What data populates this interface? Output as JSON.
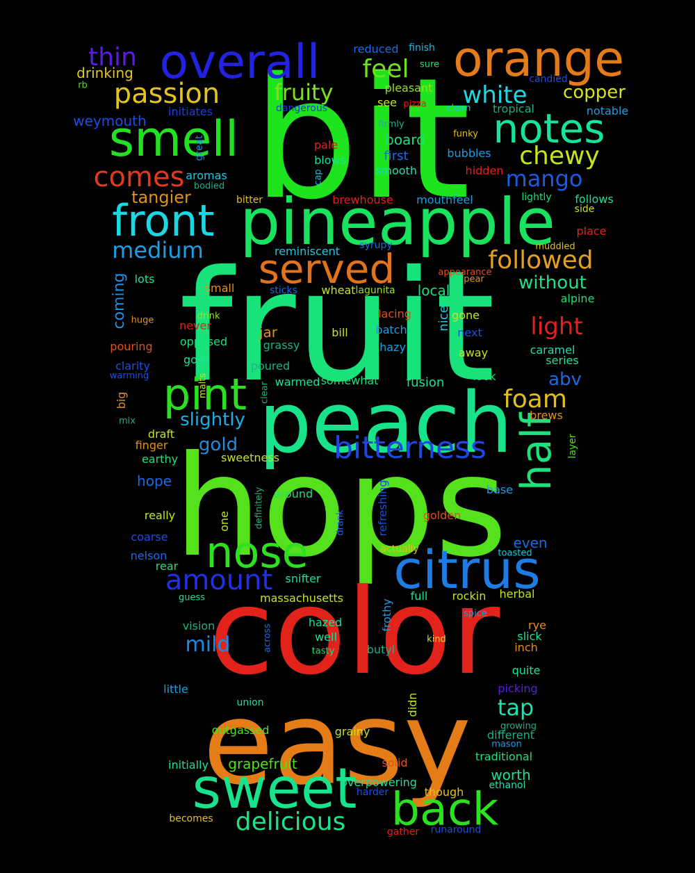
{
  "words": [
    {
      "text": "bit",
      "color": "#1de41d"
    },
    {
      "text": "fruit",
      "color": "#18e27a"
    },
    {
      "text": "hops",
      "color": "#55e21c"
    },
    {
      "text": "color",
      "color": "#e2231b"
    },
    {
      "text": "easy",
      "color": "#e47c18"
    },
    {
      "text": "peach",
      "color": "#18e28a"
    },
    {
      "text": "pineapple",
      "color": "#18e25e"
    },
    {
      "text": "orange",
      "color": "#e47b1b"
    },
    {
      "text": "overall",
      "color": "#2222e0"
    },
    {
      "text": "smell",
      "color": "#22e022"
    },
    {
      "text": "sweet",
      "color": "#18e28c"
    },
    {
      "text": "citrus",
      "color": "#1f7ce2"
    },
    {
      "text": "nose",
      "color": "#2fe020"
    },
    {
      "text": "back",
      "color": "#2ee022"
    },
    {
      "text": "notes",
      "color": "#18e2a0"
    },
    {
      "text": "front",
      "color": "#1ad8e2"
    },
    {
      "text": "served",
      "color": "#e0731c"
    },
    {
      "text": "pint",
      "color": "#2ae020"
    },
    {
      "text": "half",
      "color": "#1fe07a"
    },
    {
      "text": "bitterness",
      "color": "#2046e2"
    },
    {
      "text": "amount",
      "color": "#2230e2"
    },
    {
      "text": "passion",
      "color": "#e2c420"
    },
    {
      "text": "comes",
      "color": "#e23a1c"
    },
    {
      "text": "delicious",
      "color": "#18e28a"
    },
    {
      "text": "followed",
      "color": "#e2a020"
    },
    {
      "text": "chewy",
      "color": "#c8e21c"
    },
    {
      "text": "fruity",
      "color": "#7ce21c"
    },
    {
      "text": "white",
      "color": "#1cd8e0"
    },
    {
      "text": "feel",
      "color": "#6ee21c"
    },
    {
      "text": "thin",
      "color": "#5a1ce2"
    },
    {
      "text": "foam",
      "color": "#e2c01c"
    },
    {
      "text": "light",
      "color": "#e22020"
    },
    {
      "text": "medium",
      "color": "#1c9ee2"
    },
    {
      "text": "mango",
      "color": "#1c5ae2"
    },
    {
      "text": "tap",
      "color": "#1ce0b0"
    },
    {
      "text": "mild",
      "color": "#1c8ae2"
    },
    {
      "text": "copper",
      "color": "#d8e21c"
    },
    {
      "text": "without",
      "color": "#1ce08a"
    },
    {
      "text": "slightly",
      "color": "#1caee2"
    },
    {
      "text": "gold",
      "color": "#1c8ee2"
    },
    {
      "text": "abv",
      "color": "#1c6ae2"
    },
    {
      "text": "tangier",
      "color": "#e2901c"
    },
    {
      "text": "weymouth",
      "color": "#1c4ee2"
    },
    {
      "text": "drinking",
      "color": "#e2c81c"
    },
    {
      "text": "coming",
      "color": "#1c92e2"
    },
    {
      "text": "grapefruit",
      "color": "#4ee21c"
    },
    {
      "text": "worth",
      "color": "#1ce09a"
    },
    {
      "text": "reduced",
      "color": "#1c6ae2"
    },
    {
      "text": "finish",
      "color": "#1cb8e0"
    },
    {
      "text": "sure",
      "color": "#1ce07a"
    },
    {
      "text": "pleasant",
      "color": "#96e21c"
    },
    {
      "text": "see",
      "color": "#c8e21c"
    },
    {
      "text": "pizza",
      "color": "#e2201c"
    },
    {
      "text": "clean",
      "color": "#1cc8e0"
    },
    {
      "text": "tropical",
      "color": "#1cb088"
    },
    {
      "text": "notable",
      "color": "#1c9ee2"
    },
    {
      "text": "candied",
      "color": "#1c4ee2"
    },
    {
      "text": "rb",
      "color": "#4ee21c"
    },
    {
      "text": "initiates",
      "color": "#1c3ee2"
    },
    {
      "text": "dangerous",
      "color": "#1c3ee2"
    },
    {
      "text": "great",
      "color": "#1c8ee2"
    },
    {
      "text": "firmly",
      "color": "#1cb088"
    },
    {
      "text": "funky",
      "color": "#e2c01c"
    },
    {
      "text": "board",
      "color": "#1ce07a"
    },
    {
      "text": "pale",
      "color": "#e22020"
    },
    {
      "text": "first",
      "color": "#1c6ae2"
    },
    {
      "text": "bubbles",
      "color": "#1c9ee2"
    },
    {
      "text": "blows",
      "color": "#1ce09a"
    },
    {
      "text": "cap",
      "color": "#1cb8e0"
    },
    {
      "text": "aromas",
      "color": "#1cc8e0"
    },
    {
      "text": "bodied",
      "color": "#1cb088"
    },
    {
      "text": "smooth",
      "color": "#1ce0b0"
    },
    {
      "text": "hidden",
      "color": "#e2201c"
    },
    {
      "text": "bitter",
      "color": "#e2c01c"
    },
    {
      "text": "brewhouse",
      "color": "#e2201c"
    },
    {
      "text": "mouthfeel",
      "color": "#1c9ee2"
    },
    {
      "text": "lightly",
      "color": "#1ce07a"
    },
    {
      "text": "follows",
      "color": "#1ce09a"
    },
    {
      "text": "side",
      "color": "#c8e21c"
    },
    {
      "text": "place",
      "color": "#e2201c"
    },
    {
      "text": "reminiscent",
      "color": "#1cc8e0"
    },
    {
      "text": "syrupy",
      "color": "#1c6ae2"
    },
    {
      "text": "muddled",
      "color": "#e2c01c"
    },
    {
      "text": "appearance",
      "color": "#e2501c"
    },
    {
      "text": "pear",
      "color": "#e2901c"
    },
    {
      "text": "lots",
      "color": "#1ce09a"
    },
    {
      "text": "small",
      "color": "#e2901c"
    },
    {
      "text": "sticks",
      "color": "#1c6ae2"
    },
    {
      "text": "wheat",
      "color": "#c8e21c"
    },
    {
      "text": "lagunita",
      "color": "#96e21c"
    },
    {
      "text": "local",
      "color": "#1ce07a"
    },
    {
      "text": "alpine",
      "color": "#1ce07a"
    },
    {
      "text": "nice",
      "color": "#1cc8e0"
    },
    {
      "text": "huge",
      "color": "#e2901c"
    },
    {
      "text": "drink",
      "color": "#96e21c"
    },
    {
      "text": "lacing",
      "color": "#e2501c"
    },
    {
      "text": "gone",
      "color": "#c8e21c"
    },
    {
      "text": "never",
      "color": "#e2201c"
    },
    {
      "text": "jar",
      "color": "#e2901c"
    },
    {
      "text": "bill",
      "color": "#c8e21c"
    },
    {
      "text": "batch",
      "color": "#1c9ee2"
    },
    {
      "text": "next",
      "color": "#1c4ee2"
    },
    {
      "text": "pouring",
      "color": "#e2501c"
    },
    {
      "text": "opposed",
      "color": "#1ce07a"
    },
    {
      "text": "grassy",
      "color": "#1cb088"
    },
    {
      "text": "hazy",
      "color": "#1c9ee2"
    },
    {
      "text": "caramel",
      "color": "#1ce0b0"
    },
    {
      "text": "series",
      "color": "#1ce09a"
    },
    {
      "text": "away",
      "color": "#c8e21c"
    },
    {
      "text": "clarity",
      "color": "#1c4ee2"
    },
    {
      "text": "goes",
      "color": "#1ce09a"
    },
    {
      "text": "poured",
      "color": "#1cb088"
    },
    {
      "text": "warming",
      "color": "#1c4ee2"
    },
    {
      "text": "malts",
      "color": "#c8e21c"
    },
    {
      "text": "clear",
      "color": "#1cb088"
    },
    {
      "text": "warmed",
      "color": "#1ce09a"
    },
    {
      "text": "somewhat",
      "color": "#1ce07a"
    },
    {
      "text": "fusion",
      "color": "#1ce09a"
    },
    {
      "text": "look",
      "color": "#1ce07a"
    },
    {
      "text": "big",
      "color": "#e2901c"
    },
    {
      "text": "mix",
      "color": "#1cb088"
    },
    {
      "text": "brews",
      "color": "#e2901c"
    },
    {
      "text": "finger",
      "color": "#e2901c"
    },
    {
      "text": "draft",
      "color": "#c8e21c"
    },
    {
      "text": "earthy",
      "color": "#1ce07a"
    },
    {
      "text": "layer",
      "color": "#4ee21c"
    },
    {
      "text": "sweetness",
      "color": "#c8e21c"
    },
    {
      "text": "hope",
      "color": "#1c6ae2"
    },
    {
      "text": "definitely",
      "color": "#1cb088"
    },
    {
      "text": "around",
      "color": "#1ce07a"
    },
    {
      "text": "one",
      "color": "#c8e21c"
    },
    {
      "text": "drank",
      "color": "#1c6ae2"
    },
    {
      "text": "refreshing",
      "color": "#1c4ee2"
    },
    {
      "text": "base",
      "color": "#1c9ee2"
    },
    {
      "text": "really",
      "color": "#c8e21c"
    },
    {
      "text": "golden",
      "color": "#e2501c"
    },
    {
      "text": "coarse",
      "color": "#1c4ee2"
    },
    {
      "text": "even",
      "color": "#1c6ae2"
    },
    {
      "text": "actually",
      "color": "#e2c01c"
    },
    {
      "text": "toasted",
      "color": "#1cc8e0"
    },
    {
      "text": "nelson",
      "color": "#1c6ae2"
    },
    {
      "text": "rear",
      "color": "#1ce07a"
    },
    {
      "text": "snifter",
      "color": "#1ce09a"
    },
    {
      "text": "guess",
      "color": "#1ce09a"
    },
    {
      "text": "massachusetts",
      "color": "#c8e21c"
    },
    {
      "text": "full",
      "color": "#1ce09a"
    },
    {
      "text": "rockin",
      "color": "#c8e21c"
    },
    {
      "text": "herbal",
      "color": "#c8e21c"
    },
    {
      "text": "frothy",
      "color": "#1c9ee2"
    },
    {
      "text": "vision",
      "color": "#1cb088"
    },
    {
      "text": "hazed",
      "color": "#1ce09a"
    },
    {
      "text": "spice",
      "color": "#1c9ee2"
    },
    {
      "text": "rye",
      "color": "#e2901c"
    },
    {
      "text": "slick",
      "color": "#1ce09a"
    },
    {
      "text": "across",
      "color": "#1c6ae2"
    },
    {
      "text": "well",
      "color": "#1ce09a"
    },
    {
      "text": "tasty",
      "color": "#1ce07a"
    },
    {
      "text": "butyl",
      "color": "#1cb088"
    },
    {
      "text": "kind",
      "color": "#c8e21c"
    },
    {
      "text": "inch",
      "color": "#e2901c"
    },
    {
      "text": "quite",
      "color": "#1ce09a"
    },
    {
      "text": "little",
      "color": "#1c9ee2"
    },
    {
      "text": "didn",
      "color": "#c8e21c"
    },
    {
      "text": "picking",
      "color": "#5a1ce2"
    },
    {
      "text": "union",
      "color": "#1ce09a"
    },
    {
      "text": "outgassed",
      "color": "#4ee21c"
    },
    {
      "text": "grainy",
      "color": "#c8e21c"
    },
    {
      "text": "growing",
      "color": "#1cb088"
    },
    {
      "text": "different",
      "color": "#1cb088"
    },
    {
      "text": "mason",
      "color": "#1c9ee2"
    },
    {
      "text": "traditional",
      "color": "#1ce07a"
    },
    {
      "text": "initially",
      "color": "#1ce09a"
    },
    {
      "text": "solid",
      "color": "#e2501c"
    },
    {
      "text": "overpowering",
      "color": "#1ce09a"
    },
    {
      "text": "ethanol",
      "color": "#1ce0b0"
    },
    {
      "text": "harder",
      "color": "#1c4ee2"
    },
    {
      "text": "though",
      "color": "#e2c01c"
    },
    {
      "text": "becomes",
      "color": "#e2c01c"
    },
    {
      "text": "gather",
      "color": "#e2201c"
    },
    {
      "text": "runaround",
      "color": "#1c4ee2"
    },
    {
      "text": "assume",
      "color": "#1c9ee2"
    }
  ]
}
